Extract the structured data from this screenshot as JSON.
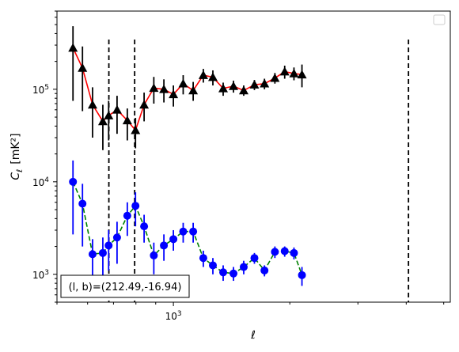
{
  "chart_data": {
    "type": "scatter",
    "title": "",
    "xlabel": "ℓ",
    "ylabel_main": "C",
    "ylabel_sub": "ℓ",
    "ylabel_unit": "[mK²]",
    "xscale": "log",
    "yscale": "log",
    "xlim": [
      500,
      5200
    ],
    "ylim": [
      500,
      700000
    ],
    "x_tick_labels": [
      {
        "value": 1000,
        "base": "10",
        "exp": "3"
      }
    ],
    "y_tick_labels": [
      {
        "value": 1000,
        "base": "10",
        "exp": "3"
      },
      {
        "value": 10000,
        "base": "10",
        "exp": "4"
      },
      {
        "value": 100000,
        "base": "10",
        "exp": "5"
      }
    ],
    "legend": {
      "placement": "top-right",
      "entries": []
    },
    "annotation": "(l, b)=(212.49,-16.94)",
    "vlines": [
      681,
      794,
      4054
    ],
    "series": [
      {
        "style": {
          "line_color": "#ff0000",
          "line_dash": "solid",
          "marker": "triangle",
          "marker_color": "#000000",
          "errorbar_color": "#000000"
        },
        "points": [
          {
            "x": 550,
            "y": 280000,
            "ylo": 75000,
            "yhi": 480000
          },
          {
            "x": 582,
            "y": 170000,
            "ylo": 58000,
            "yhi": 290000
          },
          {
            "x": 618,
            "y": 68000,
            "ylo": 30000,
            "yhi": 105000
          },
          {
            "x": 657,
            "y": 45000,
            "ylo": 22000,
            "yhi": 68000
          },
          {
            "x": 680,
            "y": 52000,
            "ylo": 28000,
            "yhi": 75000
          },
          {
            "x": 715,
            "y": 60000,
            "ylo": 33000,
            "yhi": 85000
          },
          {
            "x": 760,
            "y": 46000,
            "ylo": 28000,
            "yhi": 62000
          },
          {
            "x": 798,
            "y": 36000,
            "ylo": 23000,
            "yhi": 49000
          },
          {
            "x": 840,
            "y": 68000,
            "ylo": 45000,
            "yhi": 92000
          },
          {
            "x": 890,
            "y": 103000,
            "ylo": 70000,
            "yhi": 136000
          },
          {
            "x": 945,
            "y": 100000,
            "ylo": 72000,
            "yhi": 128000
          },
          {
            "x": 1000,
            "y": 88000,
            "ylo": 65000,
            "yhi": 110000
          },
          {
            "x": 1060,
            "y": 115000,
            "ylo": 88000,
            "yhi": 142000
          },
          {
            "x": 1125,
            "y": 97000,
            "ylo": 75000,
            "yhi": 120000
          },
          {
            "x": 1195,
            "y": 142000,
            "ylo": 118000,
            "yhi": 166000
          },
          {
            "x": 1265,
            "y": 135000,
            "ylo": 110000,
            "yhi": 160000
          },
          {
            "x": 1345,
            "y": 102000,
            "ylo": 85000,
            "yhi": 118000
          },
          {
            "x": 1430,
            "y": 108000,
            "ylo": 92000,
            "yhi": 124000
          },
          {
            "x": 1520,
            "y": 97000,
            "ylo": 85000,
            "yhi": 110000
          },
          {
            "x": 1620,
            "y": 112000,
            "ylo": 98000,
            "yhi": 126000
          },
          {
            "x": 1720,
            "y": 115000,
            "ylo": 100000,
            "yhi": 130000
          },
          {
            "x": 1830,
            "y": 132000,
            "ylo": 115000,
            "yhi": 150000
          },
          {
            "x": 1940,
            "y": 155000,
            "ylo": 130000,
            "yhi": 180000
          },
          {
            "x": 2050,
            "y": 148000,
            "ylo": 125000,
            "yhi": 172000
          },
          {
            "x": 2150,
            "y": 144000,
            "ylo": 105000,
            "yhi": 185000
          }
        ]
      },
      {
        "style": {
          "line_color": "#008000",
          "line_dash": "dashed",
          "marker": "circle",
          "marker_color": "#0000ff",
          "errorbar_color": "#0000ff"
        },
        "points": [
          {
            "x": 550,
            "y": 10000,
            "ylo": 2700,
            "yhi": 17000
          },
          {
            "x": 582,
            "y": 5800,
            "ylo": 2000,
            "yhi": 9500
          },
          {
            "x": 618,
            "y": 1650,
            "ylo": 900,
            "yhi": 2400
          },
          {
            "x": 657,
            "y": 1700,
            "ylo": 900,
            "yhi": 2500
          },
          {
            "x": 680,
            "y": 2050,
            "ylo": 1100,
            "yhi": 3000
          },
          {
            "x": 715,
            "y": 2500,
            "ylo": 1300,
            "yhi": 3700
          },
          {
            "x": 760,
            "y": 4300,
            "ylo": 2600,
            "yhi": 6000
          },
          {
            "x": 798,
            "y": 5500,
            "ylo": 3300,
            "yhi": 7700
          },
          {
            "x": 840,
            "y": 3300,
            "ylo": 2200,
            "yhi": 4400
          },
          {
            "x": 890,
            "y": 1600,
            "ylo": 1000,
            "yhi": 2200
          },
          {
            "x": 945,
            "y": 2050,
            "ylo": 1400,
            "yhi": 2700
          },
          {
            "x": 1000,
            "y": 2400,
            "ylo": 1800,
            "yhi": 3000
          },
          {
            "x": 1060,
            "y": 2900,
            "ylo": 2200,
            "yhi": 3600
          },
          {
            "x": 1125,
            "y": 2900,
            "ylo": 2200,
            "yhi": 3600
          },
          {
            "x": 1195,
            "y": 1500,
            "ylo": 1200,
            "yhi": 1800
          },
          {
            "x": 1265,
            "y": 1250,
            "ylo": 1000,
            "yhi": 1500
          },
          {
            "x": 1345,
            "y": 1050,
            "ylo": 850,
            "yhi": 1250
          },
          {
            "x": 1430,
            "y": 1020,
            "ylo": 850,
            "yhi": 1200
          },
          {
            "x": 1520,
            "y": 1200,
            "ylo": 1000,
            "yhi": 1400
          },
          {
            "x": 1620,
            "y": 1500,
            "ylo": 1300,
            "yhi": 1700
          },
          {
            "x": 1720,
            "y": 1100,
            "ylo": 950,
            "yhi": 1250
          },
          {
            "x": 1830,
            "y": 1750,
            "ylo": 1500,
            "yhi": 2000
          },
          {
            "x": 1940,
            "y": 1780,
            "ylo": 1550,
            "yhi": 2000
          },
          {
            "x": 2050,
            "y": 1700,
            "ylo": 1450,
            "yhi": 1950
          },
          {
            "x": 2150,
            "y": 980,
            "ylo": 750,
            "yhi": 1200
          }
        ]
      }
    ]
  }
}
